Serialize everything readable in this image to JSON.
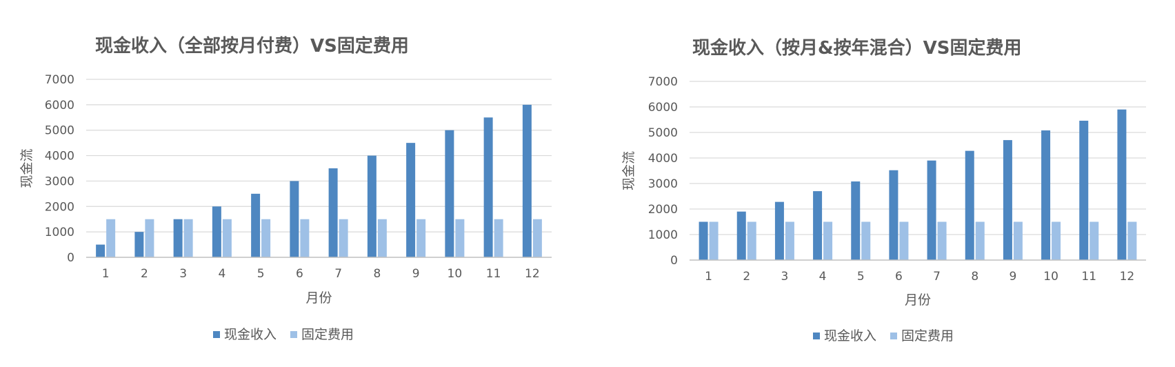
{
  "colors": {
    "cash": "#4e87c1",
    "fixed": "#9ec0e6"
  },
  "chart_data": [
    {
      "type": "bar",
      "title": "现金收入（全部按月付费）VS固定费用",
      "xlabel": "月份",
      "ylabel": "现金流",
      "categories": [
        "1",
        "2",
        "3",
        "4",
        "5",
        "6",
        "7",
        "8",
        "9",
        "10",
        "11",
        "12"
      ],
      "ylim": [
        0,
        7000
      ],
      "yticks": [
        0,
        1000,
        2000,
        3000,
        4000,
        5000,
        6000,
        7000
      ],
      "grid": true,
      "legend_position": "bottom",
      "series": [
        {
          "name": "现金收入",
          "values": [
            500,
            1000,
            1500,
            2000,
            2500,
            3000,
            3500,
            4000,
            4500,
            5000,
            5500,
            6000
          ]
        },
        {
          "name": "固定费用",
          "values": [
            1500,
            1500,
            1500,
            1500,
            1500,
            1500,
            1500,
            1500,
            1500,
            1500,
            1500,
            1500
          ]
        }
      ]
    },
    {
      "type": "bar",
      "title": "现金收入（按月&按年混合）VS固定费用",
      "xlabel": "月份",
      "ylabel": "现金流",
      "categories": [
        "1",
        "2",
        "3",
        "4",
        "5",
        "6",
        "7",
        "8",
        "9",
        "10",
        "11",
        "12"
      ],
      "ylim": [
        0,
        7000
      ],
      "yticks": [
        0,
        1000,
        2000,
        3000,
        4000,
        5000,
        6000,
        7000
      ],
      "grid": true,
      "legend_position": "bottom",
      "series": [
        {
          "name": "现金收入",
          "values": [
            1500,
            1900,
            2280,
            2700,
            3080,
            3520,
            3900,
            4280,
            4700,
            5080,
            5460,
            5900
          ]
        },
        {
          "name": "固定费用",
          "values": [
            1500,
            1500,
            1500,
            1500,
            1500,
            1500,
            1500,
            1500,
            1500,
            1500,
            1500,
            1500
          ]
        }
      ]
    }
  ]
}
